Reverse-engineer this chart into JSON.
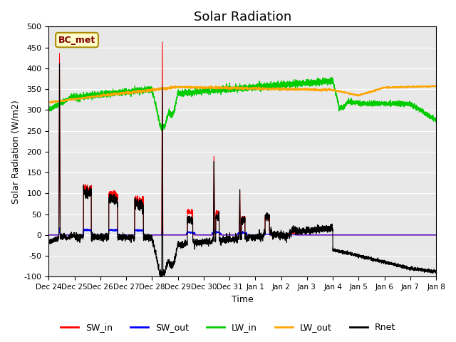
{
  "title": "Solar Radiation",
  "xlabel": "Time",
  "ylabel": "Solar Radiation (W/m2)",
  "ylim": [
    -100,
    500
  ],
  "yticks": [
    -100,
    -50,
    0,
    50,
    100,
    150,
    200,
    250,
    300,
    350,
    400,
    450,
    500
  ],
  "x_labels": [
    "Dec 24",
    "Dec 25",
    "Dec 26",
    "Dec 27",
    "Dec 28",
    "Dec 29",
    "Dec 30",
    "Dec 31",
    "Jan 1",
    "Jan 2",
    "Jan 3",
    "Jan 4",
    "Jan 5",
    "Jan 6",
    "Jan 7",
    "Jan 8"
  ],
  "station_label": "BC_met",
  "colors": {
    "SW_in": "#ff0000",
    "SW_out": "#0000ff",
    "LW_in": "#00cc00",
    "LW_out": "#ffa500",
    "Rnet": "#000000"
  },
  "background_color": "#e8e8e8",
  "title_fontsize": 13,
  "n_days": 15,
  "pts_per_day": 288
}
